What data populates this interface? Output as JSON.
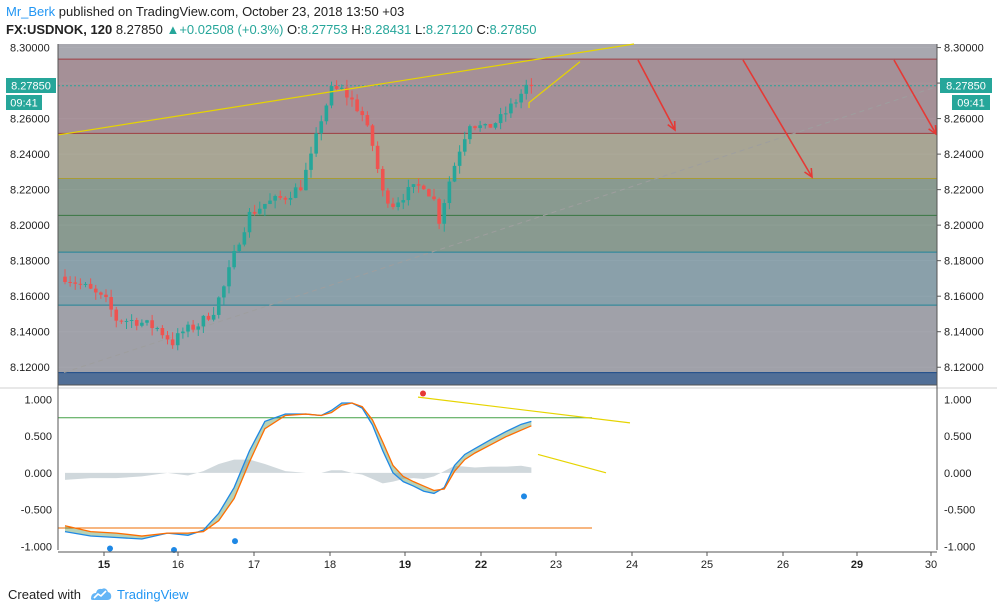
{
  "header": {
    "author": "Mr_Berk",
    "published_text": "published on TradingView.com, October 23, 2018 13:50 +03",
    "symbol": "FX:USDNOK, 120",
    "last_price": "8.27850",
    "change": "+0.02508 (+0.3%)",
    "open_label": "O:",
    "open": "8.27753",
    "high_label": "H:",
    "high": "8.28431",
    "low_label": "L:",
    "low": "8.27120",
    "close_label": "C:",
    "close": "8.27850"
  },
  "price_tag": {
    "price": "8.27850",
    "countdown": "09:41"
  },
  "footer": {
    "created_with": "Created with",
    "brand": "TradingView"
  },
  "colors": {
    "up": "#26a69a",
    "down": "#ef5350",
    "fib_red": "#ef5350",
    "fib_yellow": "#ffeb3b",
    "fib_green": "#4caf50",
    "fib_teal": "#26c6da",
    "fib_blue": "#1565c0",
    "trend_yellow": "#e6d400",
    "arrow_red": "#e53935",
    "stoch_k": "#1e88e5",
    "stoch_d": "#ff6d00"
  },
  "chart_data": [
    {
      "type": "candlestick",
      "title": "",
      "ylim": [
        8.11,
        8.302
      ],
      "y_ticks": [
        "8.30000",
        "8.28000",
        "8.26000",
        "8.24000",
        "8.22000",
        "8.20000",
        "8.18000",
        "8.16000",
        "8.14000",
        "8.12000"
      ],
      "x_ticks": [
        "15",
        "16",
        "17",
        "18",
        "19",
        "22",
        "23",
        "24",
        "25",
        "26",
        "29",
        "30"
      ],
      "x_ticks_bold": [
        "15",
        "19",
        "22",
        "29"
      ],
      "fib_levels": [
        8.2935,
        8.2517,
        8.2263,
        8.2055,
        8.1848,
        8.155,
        8.117
      ],
      "anchor_path": [
        [
          0,
          8.171
        ],
        [
          4,
          8.165
        ],
        [
          8,
          8.157
        ],
        [
          10,
          8.147
        ],
        [
          14,
          8.146
        ],
        [
          18,
          8.142
        ],
        [
          21,
          8.134
        ],
        [
          23,
          8.14
        ],
        [
          26,
          8.144
        ],
        [
          29,
          8.152
        ],
        [
          31,
          8.165
        ],
        [
          34,
          8.192
        ],
        [
          36,
          8.206
        ],
        [
          39,
          8.212
        ],
        [
          43,
          8.216
        ],
        [
          46,
          8.222
        ],
        [
          48,
          8.238
        ],
        [
          50,
          8.26
        ],
        [
          52,
          8.276
        ],
        [
          54,
          8.276
        ],
        [
          56,
          8.27
        ],
        [
          58,
          8.262
        ],
        [
          60,
          8.245
        ],
        [
          62,
          8.218
        ],
        [
          64,
          8.212
        ],
        [
          67,
          8.219
        ],
        [
          70,
          8.223
        ],
        [
          72,
          8.214
        ],
        [
          73,
          8.203
        ],
        [
          75,
          8.225
        ],
        [
          77,
          8.243
        ],
        [
          79,
          8.258
        ],
        [
          82,
          8.254
        ],
        [
          85,
          8.26
        ],
        [
          88,
          8.27
        ],
        [
          90,
          8.278
        ],
        [
          91,
          8.2785
        ]
      ],
      "last_close": 8.2785
    },
    {
      "type": "line",
      "title": "",
      "ylim": [
        -1.05,
        1.1
      ],
      "y_ticks": [
        "1.000",
        "0.500",
        "0.000",
        "-0.500",
        "-1.000"
      ],
      "series_k": [
        [
          0,
          -0.8
        ],
        [
          5,
          -0.86
        ],
        [
          10,
          -0.88
        ],
        [
          15,
          -0.9
        ],
        [
          20,
          -0.82
        ],
        [
          24,
          -0.85
        ],
        [
          27,
          -0.78
        ],
        [
          30,
          -0.55
        ],
        [
          33,
          -0.2
        ],
        [
          36,
          0.3
        ],
        [
          39,
          0.7
        ],
        [
          43,
          0.8
        ],
        [
          47,
          0.8
        ],
        [
          50,
          0.78
        ],
        [
          52,
          0.85
        ],
        [
          54,
          0.95
        ],
        [
          56,
          0.95
        ],
        [
          58,
          0.88
        ],
        [
          60,
          0.65
        ],
        [
          62,
          0.3
        ],
        [
          64,
          0.0
        ],
        [
          66,
          -0.12
        ],
        [
          68,
          -0.18
        ],
        [
          70,
          -0.25
        ],
        [
          72,
          -0.28
        ],
        [
          74,
          -0.2
        ],
        [
          76,
          0.1
        ],
        [
          78,
          0.25
        ],
        [
          80,
          0.33
        ],
        [
          83,
          0.45
        ],
        [
          86,
          0.56
        ],
        [
          89,
          0.66
        ],
        [
          91,
          0.7
        ]
      ],
      "series_d": [
        [
          0,
          -0.72
        ],
        [
          5,
          -0.8
        ],
        [
          10,
          -0.82
        ],
        [
          15,
          -0.86
        ],
        [
          20,
          -0.82
        ],
        [
          24,
          -0.82
        ],
        [
          27,
          -0.8
        ],
        [
          30,
          -0.65
        ],
        [
          33,
          -0.35
        ],
        [
          36,
          0.15
        ],
        [
          39,
          0.6
        ],
        [
          43,
          0.78
        ],
        [
          47,
          0.8
        ],
        [
          50,
          0.78
        ],
        [
          52,
          0.82
        ],
        [
          54,
          0.92
        ],
        [
          56,
          0.95
        ],
        [
          58,
          0.9
        ],
        [
          60,
          0.72
        ],
        [
          62,
          0.42
        ],
        [
          64,
          0.1
        ],
        [
          66,
          -0.05
        ],
        [
          68,
          -0.12
        ],
        [
          70,
          -0.18
        ],
        [
          72,
          -0.24
        ],
        [
          74,
          -0.22
        ],
        [
          76,
          0.02
        ],
        [
          78,
          0.18
        ],
        [
          80,
          0.27
        ],
        [
          83,
          0.38
        ],
        [
          86,
          0.49
        ],
        [
          89,
          0.58
        ],
        [
          91,
          0.64
        ]
      ],
      "levels": [
        0.75,
        -0.75
      ]
    }
  ]
}
